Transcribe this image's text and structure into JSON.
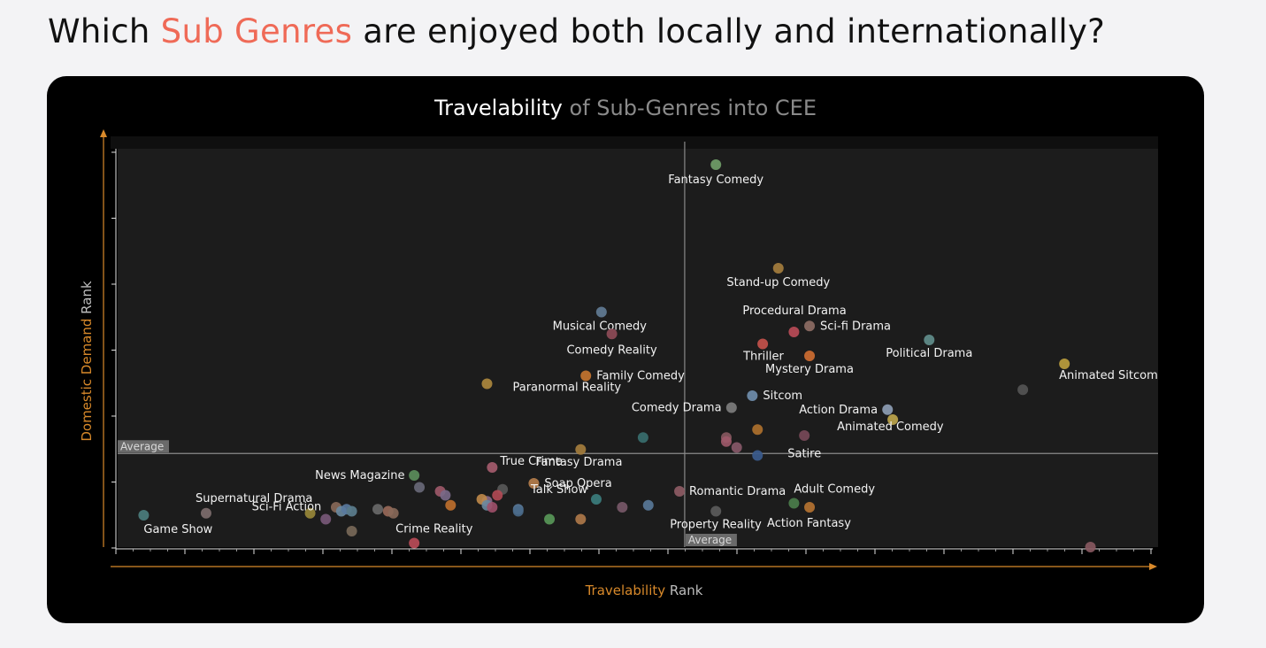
{
  "headline": {
    "prefix": "Which ",
    "accent": "Sub Genres",
    "suffix": " are enjoyed both locally and internationally?"
  },
  "colors": {
    "accent": "#ef6a57",
    "axis": "#d8892a",
    "panel": "#000000",
    "plot_bg": "#1c1c1c"
  },
  "chart_data": {
    "type": "scatter",
    "title": "Travelability",
    "subtitle": "of Sub-Genres into CEE",
    "xlabel_accent": "Travelability",
    "xlabel_rest": " Rank",
    "ylabel_accent": "Domestic Demand",
    "ylabel_rest": " Rank",
    "xlim": [
      0,
      100
    ],
    "ylim": [
      0,
      100
    ],
    "x_average": 54.5,
    "y_average": 23.5,
    "x_average_label": "Average",
    "y_average_label": "Average",
    "grid": false,
    "labeled_points": [
      {
        "name": "Fantasy Comedy",
        "x": 57.5,
        "y": 96,
        "color": "#6e9a66"
      },
      {
        "name": "Stand-up Comedy",
        "x": 63.5,
        "y": 70,
        "color": "#a07a3c"
      },
      {
        "name": "Musical Comedy",
        "x": 46.5,
        "y": 59,
        "color": "#5f7890"
      },
      {
        "name": "Comedy Reality",
        "x": 47.5,
        "y": 53.5,
        "color": "#8a4a55"
      },
      {
        "name": "Family Comedy",
        "x": 45,
        "y": 43,
        "color": "#c0722e"
      },
      {
        "name": "Paranormal Reality",
        "x": 35.5,
        "y": 41,
        "color": "#a8843c"
      },
      {
        "name": "Procedural Drama",
        "x": 65,
        "y": 54,
        "color": "#b44a55"
      },
      {
        "name": "Sci-fi Drama",
        "x": 66.5,
        "y": 55.5,
        "color": "#8a6a62"
      },
      {
        "name": "Thriller",
        "x": 62,
        "y": 51,
        "color": "#c0504a"
      },
      {
        "name": "Mystery Drama",
        "x": 66.5,
        "y": 48,
        "color": "#c86a30"
      },
      {
        "name": "Political Drama",
        "x": 78,
        "y": 52,
        "color": "#5f8a88"
      },
      {
        "name": "Animated Sitcom",
        "x": 91,
        "y": 46,
        "color": "#b69a3c"
      },
      {
        "name": "Sitcom",
        "x": 61,
        "y": 38,
        "color": "#6d8aa8"
      },
      {
        "name": "Comedy Drama",
        "x": 59,
        "y": 35,
        "color": "#7a7a7a"
      },
      {
        "name": "Action Drama",
        "x": 74,
        "y": 34.5,
        "color": "#8a9ab0"
      },
      {
        "name": "Animated Comedy",
        "x": 74.5,
        "y": 32,
        "color": "#b7a04a"
      },
      {
        "name": "Satire",
        "x": 61.5,
        "y": 23,
        "color": "#3a5a8a"
      },
      {
        "name": "Fantasy Drama",
        "x": 44.5,
        "y": 24.5,
        "color": "#a07a3c"
      },
      {
        "name": "True Crime",
        "x": 36,
        "y": 20,
        "color": "#a05a6a"
      },
      {
        "name": "News Magazine",
        "x": 28.5,
        "y": 18,
        "color": "#5a8a5a"
      },
      {
        "name": "Soap Opera",
        "x": 40,
        "y": 16,
        "color": "#b07a4a"
      },
      {
        "name": "Sci-Fi Action",
        "x": 22.5,
        "y": 9,
        "color": "#5a7a8a"
      },
      {
        "name": "Talk Show",
        "x": 46,
        "y": 12,
        "color": "#3a7a7a"
      },
      {
        "name": "Supernatural Drama",
        "x": 8.5,
        "y": 8.5,
        "color": "#7a6a6a"
      },
      {
        "name": "Game Show",
        "x": 2.5,
        "y": 8,
        "color": "#4a7a7a"
      },
      {
        "name": "Crime Reality",
        "x": 28.5,
        "y": 1,
        "color": "#b44a55"
      },
      {
        "name": "Romantic Drama",
        "x": 54,
        "y": 14,
        "color": "#8a5a62"
      },
      {
        "name": "Adult Comedy",
        "x": 65,
        "y": 11,
        "color": "#4a7a4a"
      },
      {
        "name": "Action Fantasy",
        "x": 66.5,
        "y": 10,
        "color": "#b07030"
      },
      {
        "name": "Property Reality",
        "x": 57.5,
        "y": 9,
        "color": "#5a5a5a"
      }
    ],
    "unlabeled_points": [
      {
        "x": 87,
        "y": 39.5,
        "color": "#555555"
      },
      {
        "x": 50.5,
        "y": 27.5,
        "color": "#3a7070"
      },
      {
        "x": 61.5,
        "y": 29.5,
        "color": "#b0722e"
      },
      {
        "x": 58.5,
        "y": 27.5,
        "color": "#8a5a62"
      },
      {
        "x": 58.5,
        "y": 26.5,
        "color": "#a05a6a"
      },
      {
        "x": 59.5,
        "y": 25,
        "color": "#8a5a6a"
      },
      {
        "x": 66,
        "y": 28,
        "color": "#7a4a5a"
      },
      {
        "x": 29,
        "y": 15,
        "color": "#6a6a7a"
      },
      {
        "x": 31,
        "y": 14,
        "color": "#a05a6a"
      },
      {
        "x": 31.5,
        "y": 13,
        "color": "#7a6a8a"
      },
      {
        "x": 37,
        "y": 14.5,
        "color": "#5a5a5a"
      },
      {
        "x": 36.5,
        "y": 13,
        "color": "#b44a55"
      },
      {
        "x": 35.5,
        "y": 11.5,
        "color": "#8a6a8a"
      },
      {
        "x": 35,
        "y": 12,
        "color": "#c08a4a"
      },
      {
        "x": 35.5,
        "y": 10.5,
        "color": "#6a8aa0"
      },
      {
        "x": 36,
        "y": 10,
        "color": "#a0506a"
      },
      {
        "x": 32,
        "y": 10.5,
        "color": "#c0702e"
      },
      {
        "x": 38.5,
        "y": 9.5,
        "color": "#5a7a9a"
      },
      {
        "x": 38.5,
        "y": 9,
        "color": "#4a6a8a"
      },
      {
        "x": 41.5,
        "y": 7,
        "color": "#5a9a5a"
      },
      {
        "x": 44.5,
        "y": 7,
        "color": "#b07a4a"
      },
      {
        "x": 48.5,
        "y": 10,
        "color": "#7a5a6a"
      },
      {
        "x": 51,
        "y": 10.5,
        "color": "#5a7a9a"
      },
      {
        "x": 18.5,
        "y": 8.5,
        "color": "#9a8a3a"
      },
      {
        "x": 20,
        "y": 7,
        "color": "#7a5a7a"
      },
      {
        "x": 21,
        "y": 10,
        "color": "#8a6a5a"
      },
      {
        "x": 21.5,
        "y": 9,
        "color": "#6a8aa0"
      },
      {
        "x": 22,
        "y": 9.5,
        "color": "#5a7aa0"
      },
      {
        "x": 22.5,
        "y": 4,
        "color": "#7a6a5a"
      },
      {
        "x": 25,
        "y": 9.5,
        "color": "#6a6a6a"
      },
      {
        "x": 26,
        "y": 9,
        "color": "#9a6a5a"
      },
      {
        "x": 26.5,
        "y": 8.5,
        "color": "#8a6a5a"
      },
      {
        "x": 93.5,
        "y": 0,
        "color": "#8a5a62"
      }
    ]
  }
}
